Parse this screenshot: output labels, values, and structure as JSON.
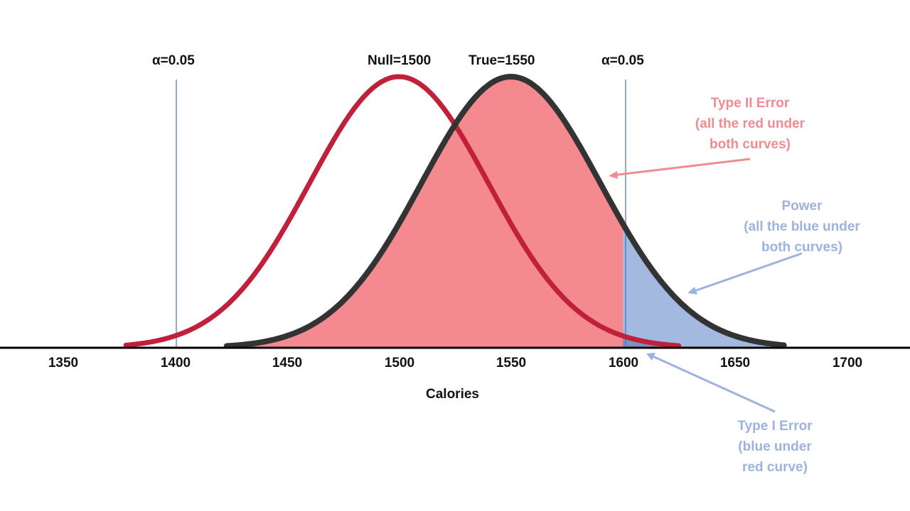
{
  "colors": {
    "null_curve": "#c0203a",
    "true_curve": "#333333",
    "type2_fill": "#f48a8f",
    "power_fill": "#a3b9e0",
    "power_dark": "#2f4a7c",
    "type1_fill": "#7a4478",
    "alpha_line": "#4f6eaa",
    "type2_text": "#f08c91",
    "blue_text": "#9db3de",
    "axis": "#000000"
  },
  "axis": {
    "label": "Calories",
    "ticks": [
      "1350",
      "1400",
      "1450",
      "1500",
      "1550",
      "1600",
      "1650",
      "1700"
    ]
  },
  "alpha_left": "α=0.05",
  "alpha_right": "α=0.05",
  "null_label": "Null=1500",
  "true_label": "True=1550",
  "type2": {
    "line1": "Type II Error",
    "line2": "(all the red under",
    "line3": "both curves)"
  },
  "power": {
    "line1": "Power",
    "line2": "(all the blue under",
    "line3": "both curves)"
  },
  "type1": {
    "line1": "Type I Error",
    "line2": "(blue under",
    "line3": "red curve)"
  }
}
